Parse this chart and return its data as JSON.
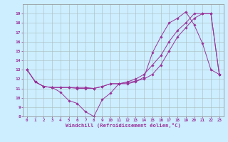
{
  "title": "",
  "xlabel": "Windchill (Refroidissement éolien,°C)",
  "ylabel": "",
  "background_color": "#cceeff",
  "line_color": "#993399",
  "grid_color": "#aabbbb",
  "ylim": [
    8,
    20
  ],
  "xlim": [
    -0.5,
    23.5
  ],
  "yticks": [
    8,
    9,
    10,
    11,
    12,
    13,
    14,
    15,
    16,
    17,
    18,
    19
  ],
  "xticks": [
    0,
    1,
    2,
    3,
    4,
    5,
    6,
    7,
    8,
    9,
    10,
    11,
    12,
    13,
    14,
    15,
    16,
    17,
    18,
    19,
    20,
    21,
    22,
    23
  ],
  "series1_x": [
    0,
    1,
    2,
    3,
    4,
    5,
    6,
    7,
    8,
    9,
    10,
    11,
    12,
    13,
    14,
    15,
    16,
    17,
    18,
    19,
    20,
    21,
    22,
    23
  ],
  "series1_y": [
    13,
    11.7,
    11.2,
    11.1,
    10.6,
    9.7,
    9.4,
    8.5,
    8.0,
    9.8,
    10.5,
    11.5,
    11.5,
    11.7,
    12.2,
    14.8,
    16.5,
    18.0,
    18.5,
    19.2,
    17.8,
    15.8,
    13.0,
    12.5
  ],
  "series2_x": [
    0,
    1,
    2,
    3,
    4,
    5,
    6,
    7,
    8,
    9,
    10,
    11,
    12,
    13,
    14,
    15,
    16,
    17,
    18,
    19,
    20,
    21,
    22,
    23
  ],
  "series2_y": [
    13,
    11.7,
    11.2,
    11.1,
    11.1,
    11.1,
    11.1,
    11.1,
    11.0,
    11.2,
    11.5,
    11.5,
    11.7,
    12.0,
    12.5,
    13.5,
    14.5,
    16.0,
    17.2,
    18.0,
    19.0,
    19.0,
    19.0,
    12.5
  ],
  "series3_x": [
    0,
    1,
    2,
    3,
    4,
    5,
    6,
    7,
    8,
    9,
    10,
    11,
    12,
    13,
    14,
    15,
    16,
    17,
    18,
    19,
    20,
    21,
    22,
    23
  ],
  "series3_y": [
    13,
    11.7,
    11.2,
    11.1,
    11.1,
    11.1,
    11.0,
    11.0,
    11.0,
    11.2,
    11.5,
    11.5,
    11.6,
    11.8,
    12.0,
    12.5,
    13.5,
    15.0,
    16.5,
    17.5,
    18.5,
    19.0,
    19.0,
    12.5
  ]
}
